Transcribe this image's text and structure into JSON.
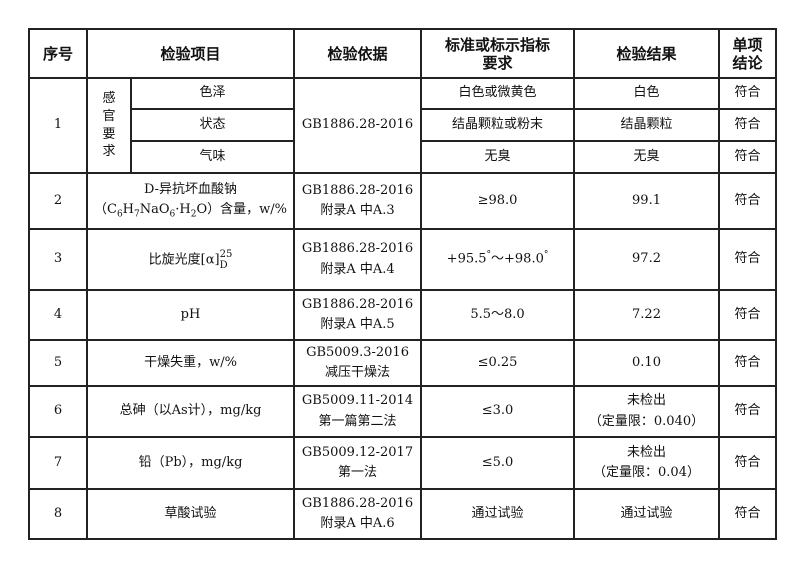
{
  "headers": [
    "序号",
    "检验项目",
    "检验依据",
    "标准或标示指标要求",
    "检验结果",
    "单项结论"
  ],
  "header_lines": {
    "standard": [
      "标准或标示指标",
      "要求"
    ],
    "conclusion": [
      "单项",
      "结论"
    ]
  },
  "row1": {
    "no": "1",
    "group": [
      "感",
      "官",
      "要",
      "求"
    ],
    "basis": "GB1886.28-2016",
    "items": [
      {
        "item": "色泽",
        "requirement": "白色或微黄色",
        "result": "白色",
        "conclusion": "符合"
      },
      {
        "item": "状态",
        "requirement": "结晶颗粒或粉末",
        "result": "结晶颗粒",
        "conclusion": "符合"
      },
      {
        "item": "气味",
        "requirement": "无臭",
        "result": "无臭",
        "conclusion": "符合"
      }
    ]
  },
  "row2": {
    "no": "2",
    "item_line1": "D-异抗坏血酸钠",
    "item_pre": "（C",
    "s1": "6",
    "m1": "H",
    "s2": "7",
    "m2": "NaO",
    "s3": "6",
    "m3": "·H",
    "s4": "2",
    "item_post": "O）含量，w/%",
    "basis": [
      "GB1886.28-2016",
      "附录A 中A.3"
    ],
    "requirement": "≥98.0",
    "result": "99.1",
    "conclusion": "符合"
  },
  "row3": {
    "no": "3",
    "item": "比旋光度[α]",
    "sup": "25",
    "sub": "D",
    "basis": [
      "GB1886.28-2016",
      "附录A 中A.4"
    ],
    "req_a": "+95.5",
    "req_mid": "～+98.0",
    "deg": "°",
    "result": "97.2",
    "conclusion": "符合"
  },
  "rows": [
    {
      "no": "4",
      "item": "pH",
      "basis": [
        "GB1886.28-2016",
        "附录A 中A.5"
      ],
      "requirement": "5.5～8.0",
      "result": [
        "7.22"
      ],
      "conclusion": "符合"
    },
    {
      "no": "5",
      "item": "干燥失重，w/%",
      "basis": [
        "GB5009.3-2016",
        "减压干燥法"
      ],
      "requirement": "≤0.25",
      "result": [
        "0.10"
      ],
      "conclusion": "符合"
    },
    {
      "no": "6",
      "item": "总砷（以As计），mg/kg",
      "basis": [
        "GB5009.11-2014",
        "第一篇第二法"
      ],
      "requirement": "≤3.0",
      "result": [
        "未检出",
        "（定量限：0.040）"
      ],
      "conclusion": "符合"
    },
    {
      "no": "7",
      "item": "铅（Pb），mg/kg",
      "basis": [
        "GB5009.12-2017",
        "第一法"
      ],
      "requirement": "≤5.0",
      "result": [
        "未检出",
        "（定量限：0.04）"
      ],
      "conclusion": "符合"
    },
    {
      "no": "8",
      "item": "草酸试验",
      "basis": [
        "GB1886.28-2016",
        "附录A 中A.6"
      ],
      "requirement": "通过试验",
      "result": [
        "通过试验"
      ],
      "conclusion": "符合"
    }
  ]
}
